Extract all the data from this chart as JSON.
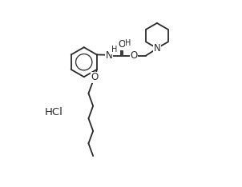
{
  "bg_color": "#ffffff",
  "line_color": "#2a2a2a",
  "line_width": 1.3,
  "font_size": 7.5,
  "figsize": [
    3.02,
    2.34
  ],
  "dpi": 100,
  "xlim": [
    0,
    10
  ],
  "ylim": [
    -4.5,
    5.5
  ]
}
